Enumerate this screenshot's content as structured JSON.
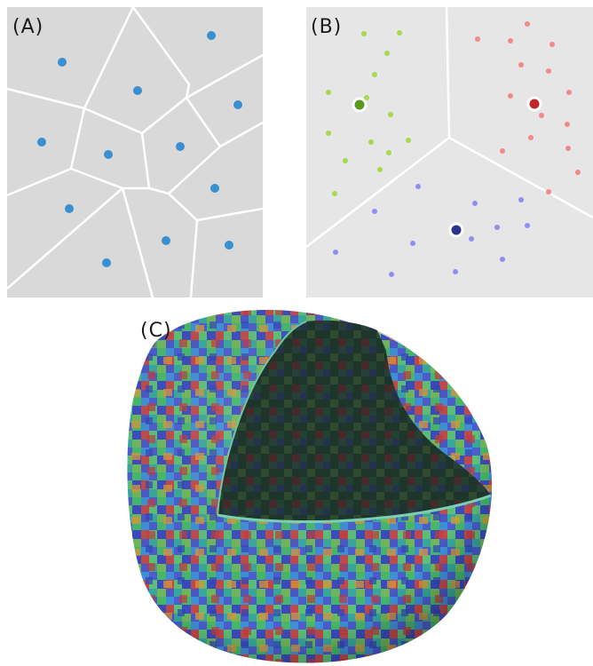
{
  "panels": {
    "a": {
      "label": "(A)"
    },
    "b": {
      "label": "(B)"
    },
    "c": {
      "label": "(C)"
    }
  },
  "colors": {
    "panel_background": "#d9d9d9",
    "panel_b_background": "#e6e6e6",
    "cell_edge": "#ffffff",
    "site_blue": "#3a8fd0",
    "cluster_green": "#a8d94a",
    "cluster_green_center": "#5b9a1e",
    "cluster_red": "#f08a8a",
    "cluster_red_center": "#c0262a",
    "cluster_blue": "#8f8ff0",
    "cluster_blue_center": "#2a3590",
    "sphere_cut_surface": "#2a4a3a",
    "sphere_back_shell": "#c8c8c8"
  }
}
